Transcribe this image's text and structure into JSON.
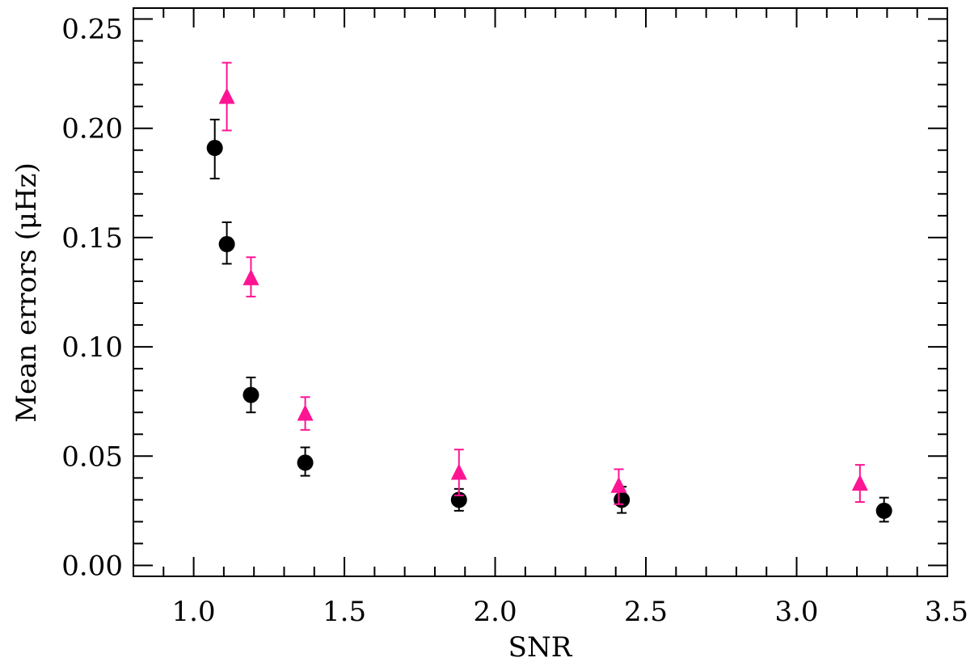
{
  "chart_data": {
    "type": "scatter",
    "xlabel": "SNR",
    "ylabel": "Mean errors (μHz)",
    "xlim": [
      0.8,
      3.5
    ],
    "ylim": [
      -0.005,
      0.255
    ],
    "x_major_ticks": [
      1.0,
      1.5,
      2.0,
      2.5,
      3.0,
      3.5
    ],
    "x_tick_labels": [
      "1.0",
      "1.5",
      "2.0",
      "2.5",
      "3.0",
      "3.5"
    ],
    "x_minor_step": 0.1,
    "y_major_ticks": [
      0.0,
      0.05,
      0.1,
      0.15,
      0.2,
      0.25
    ],
    "y_tick_labels": [
      "0.00",
      "0.05",
      "0.10",
      "0.15",
      "0.20",
      "0.25"
    ],
    "y_minor_step": 0.01,
    "grid": false,
    "series": [
      {
        "marker": "circle",
        "color": "#000000",
        "points": [
          {
            "x": 1.07,
            "y": 0.191,
            "err_low": 0.177,
            "err_high": 0.204
          },
          {
            "x": 1.11,
            "y": 0.147,
            "err_low": 0.138,
            "err_high": 0.157
          },
          {
            "x": 1.19,
            "y": 0.078,
            "err_low": 0.07,
            "err_high": 0.086
          },
          {
            "x": 1.37,
            "y": 0.047,
            "err_low": 0.041,
            "err_high": 0.054
          },
          {
            "x": 1.88,
            "y": 0.03,
            "err_low": 0.025,
            "err_high": 0.035
          },
          {
            "x": 2.42,
            "y": 0.03,
            "err_low": 0.024,
            "err_high": 0.036
          },
          {
            "x": 3.29,
            "y": 0.025,
            "err_low": 0.02,
            "err_high": 0.031
          }
        ]
      },
      {
        "marker": "triangle",
        "color": "#ff1493",
        "points": [
          {
            "x": 1.11,
            "y": 0.214,
            "err_low": 0.199,
            "err_high": 0.23
          },
          {
            "x": 1.19,
            "y": 0.131,
            "err_low": 0.123,
            "err_high": 0.141
          },
          {
            "x": 1.37,
            "y": 0.069,
            "err_low": 0.062,
            "err_high": 0.077
          },
          {
            "x": 1.88,
            "y": 0.042,
            "err_low": 0.032,
            "err_high": 0.053
          },
          {
            "x": 2.41,
            "y": 0.036,
            "err_low": 0.028,
            "err_high": 0.044
          },
          {
            "x": 3.21,
            "y": 0.037,
            "err_low": 0.029,
            "err_high": 0.046
          }
        ]
      }
    ]
  }
}
